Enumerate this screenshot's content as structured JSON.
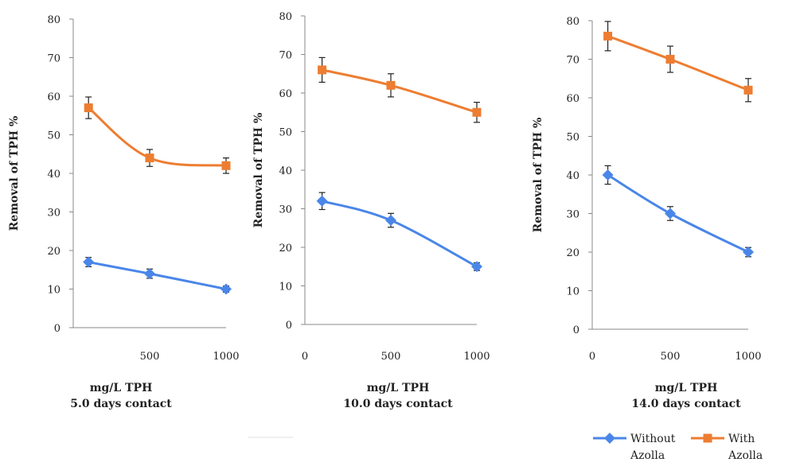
{
  "chart_data": [
    {
      "type": "line",
      "ylabel": "Removal of TPH %",
      "xlabel_lines": [
        "mg/L TPH",
        "5.0 days contact"
      ],
      "x_ticks": [
        "500",
        "1000"
      ],
      "y_ticks": [
        "0",
        "10",
        "20",
        "30",
        "40",
        "50",
        "60",
        "70",
        "80"
      ],
      "xlim": [
        0,
        1000
      ],
      "ylim": [
        0,
        80
      ],
      "x": [
        100,
        500,
        1000
      ],
      "series": [
        {
          "name": "Without Azolla",
          "color": "#4a86e8",
          "marker": "diamond",
          "values": [
            17,
            14,
            10
          ],
          "errors": [
            1.2,
            1.2,
            0.8
          ]
        },
        {
          "name": "With Azolla",
          "color": "#ed7d31",
          "marker": "square",
          "values": [
            57,
            44,
            42
          ],
          "errors": [
            2.8,
            2.2,
            2
          ]
        }
      ]
    },
    {
      "type": "line",
      "ylabel": "Removal of TPH %",
      "xlabel_lines": [
        "mg/L TPH",
        "10.0 days contact"
      ],
      "x_ticks": [
        "0",
        "500",
        "1000"
      ],
      "y_ticks": [
        "0",
        "10",
        "20",
        "30",
        "40",
        "50",
        "60",
        "70",
        "80"
      ],
      "xlim": [
        0,
        1000
      ],
      "ylim": [
        0,
        80
      ],
      "x": [
        100,
        500,
        1000
      ],
      "series": [
        {
          "name": "Without Azolla",
          "color": "#4a86e8",
          "marker": "diamond",
          "values": [
            32,
            27,
            15
          ],
          "errors": [
            2.2,
            1.8,
            1
          ]
        },
        {
          "name": "With Azolla",
          "color": "#ed7d31",
          "marker": "square",
          "values": [
            66,
            62,
            55
          ],
          "errors": [
            3.2,
            3,
            2.6
          ]
        }
      ]
    },
    {
      "type": "line",
      "ylabel": "Removal of TPH %",
      "xlabel_lines": [
        "mg/L TPH",
        "14.0 days contact"
      ],
      "x_ticks": [
        "0",
        "500",
        "1000"
      ],
      "y_ticks": [
        "0",
        "10",
        "20",
        "30",
        "40",
        "50",
        "60",
        "70",
        "80"
      ],
      "xlim": [
        0,
        1000
      ],
      "ylim": [
        0,
        80
      ],
      "x": [
        100,
        500,
        1000
      ],
      "series": [
        {
          "name": "Without Azolla",
          "color": "#4a86e8",
          "marker": "diamond",
          "values": [
            40,
            30,
            20
          ],
          "errors": [
            2.4,
            1.8,
            1.2
          ]
        },
        {
          "name": "With Azolla",
          "color": "#ed7d31",
          "marker": "square",
          "values": [
            76,
            70,
            62
          ],
          "errors": [
            3.8,
            3.4,
            3
          ]
        }
      ]
    }
  ],
  "legend": {
    "items": [
      {
        "lines": [
          "Without",
          "Azolla"
        ],
        "color": "#4a86e8",
        "marker": "diamond"
      },
      {
        "lines": [
          "With",
          "Azolla"
        ],
        "color": "#ed7d31",
        "marker": "square"
      }
    ]
  }
}
